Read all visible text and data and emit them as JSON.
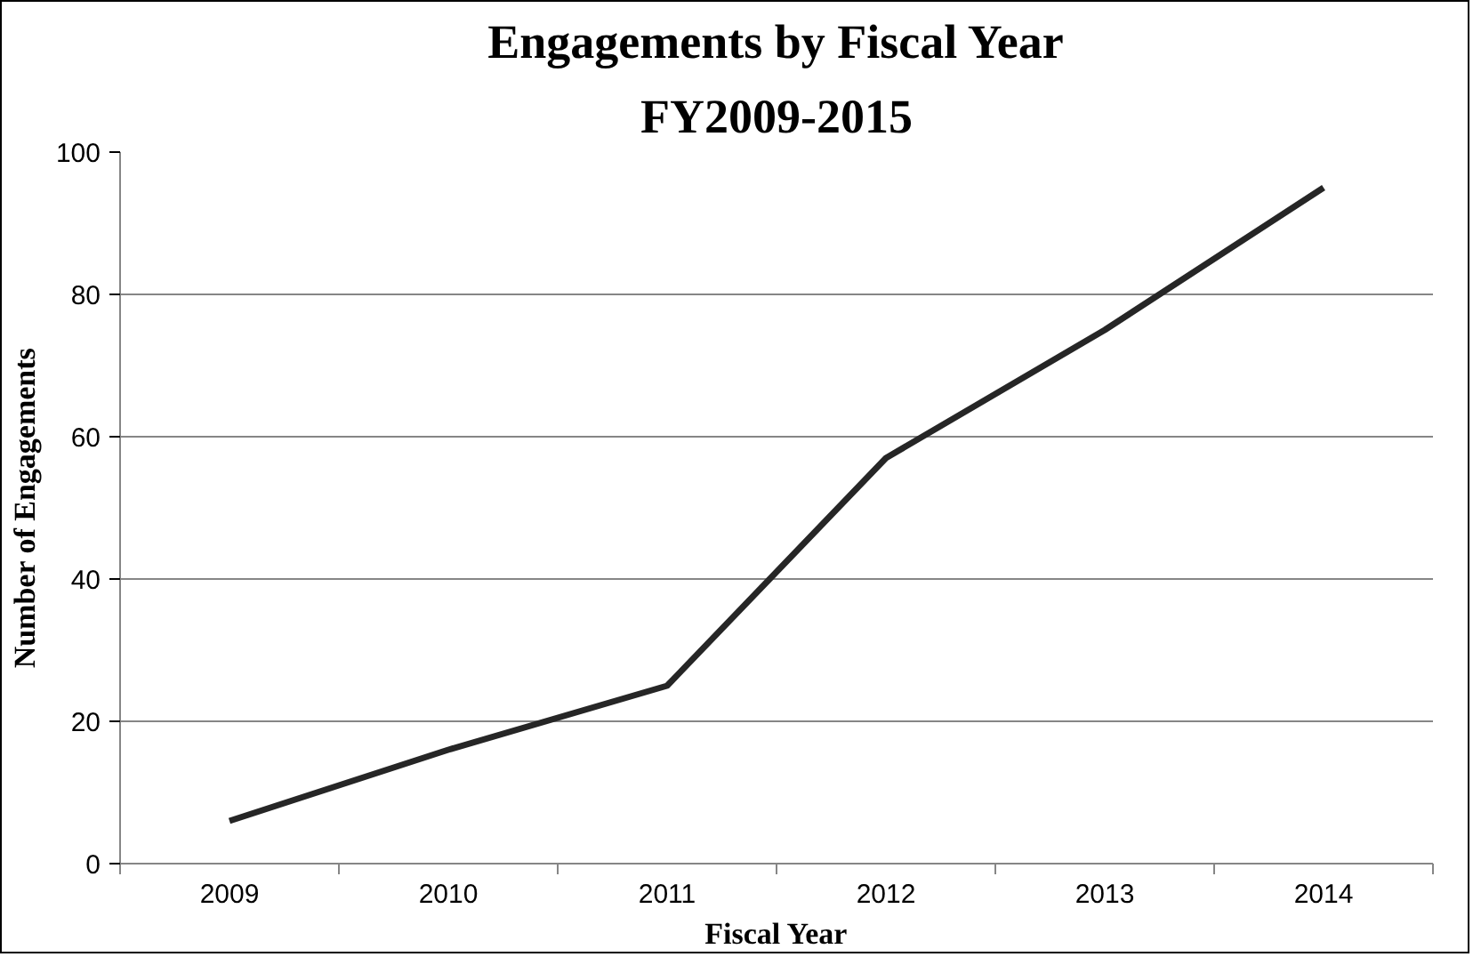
{
  "chart_data": {
    "type": "line",
    "title": "Engagements by Fiscal Year",
    "subtitle": "FY2009-2015",
    "xlabel": "Fiscal Year",
    "ylabel": "Number of Engagements",
    "categories": [
      "2009",
      "2010",
      "2011",
      "2012",
      "2013",
      "2014"
    ],
    "series": [
      {
        "color": "#262626",
        "values": [
          6,
          16,
          25,
          57,
          75,
          95
        ]
      }
    ],
    "ylim": [
      0,
      100
    ],
    "yticks": [
      0,
      20,
      40,
      60,
      80,
      100
    ],
    "grid": "y",
    "marker": "none",
    "line_style": "solid"
  }
}
